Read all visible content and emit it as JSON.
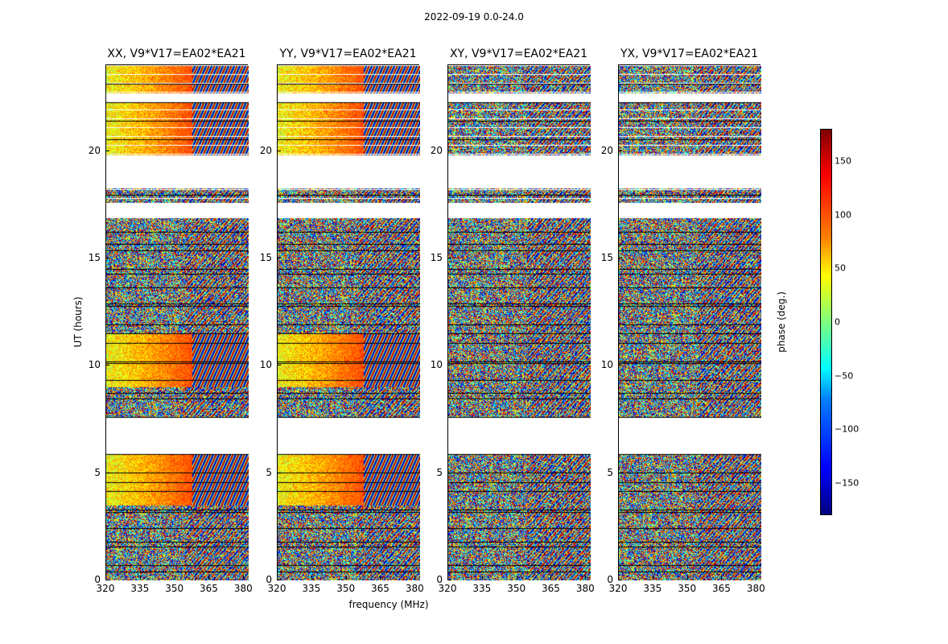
{
  "chart_data": {
    "type": "heatmap",
    "title": "2022-09-19 0.0-24.0",
    "xlabel": "frequency (MHz)",
    "ylabel": "UT (hours)",
    "xlim": [
      320,
      382
    ],
    "ylim": [
      0,
      24
    ],
    "x_ticks": [
      "320",
      "335",
      "350",
      "365",
      "380"
    ],
    "x_tick_values": [
      320,
      335,
      350,
      365,
      380
    ],
    "y_ticks": [
      "0",
      "5",
      "10",
      "15",
      "20"
    ],
    "y_tick_values": [
      0,
      5,
      10,
      15,
      20
    ],
    "colorbar": {
      "label": "phase (deg.)",
      "range": [
        -180,
        180
      ],
      "ticks": [
        "150",
        "100",
        "50",
        "0",
        "−50",
        "−100",
        "−150"
      ],
      "tick_values": [
        150,
        100,
        50,
        0,
        -50,
        -100,
        -150
      ],
      "colormap": "jet"
    },
    "panels": [
      {
        "title": "XX, V9*V17=EA02*EA21",
        "coherent": true
      },
      {
        "title": "YY, V9*V17=EA02*EA21",
        "coherent": true
      },
      {
        "title": "XY, V9*V17=EA02*EA21",
        "coherent": false
      },
      {
        "title": "YX, V9*V17=EA02*EA21",
        "coherent": false
      }
    ],
    "data_gaps_hours": [
      [
        5.9,
        7.6
      ],
      [
        16.9,
        17.6
      ],
      [
        18.3,
        19.8
      ],
      [
        22.3,
        22.7
      ]
    ]
  }
}
